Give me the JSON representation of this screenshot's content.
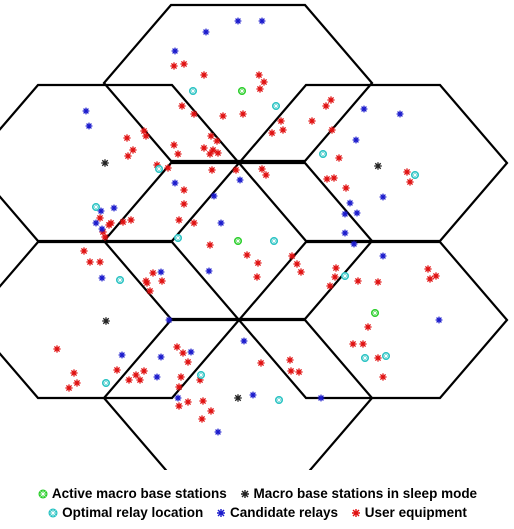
{
  "legend": {
    "active": {
      "label": "Active macro base stations",
      "color": "#22cc22"
    },
    "sleep": {
      "label": "Macro base stations in sleep mode",
      "color": "#222222"
    },
    "relay_opt": {
      "label": "Optimal relay location",
      "color": "#20c0c0"
    },
    "candidate": {
      "label": "Candidate relays",
      "color": "#1a1acc"
    },
    "user": {
      "label": "User equipment",
      "color": "#e01010"
    }
  },
  "cells": [
    {
      "id": "top",
      "bs": "active"
    },
    {
      "id": "upper-left",
      "bs": "sleep"
    },
    {
      "id": "upper-right",
      "bs": "sleep"
    },
    {
      "id": "center",
      "bs": "active"
    },
    {
      "id": "lower-left",
      "bs": "sleep"
    },
    {
      "id": "lower-right",
      "bs": "active"
    },
    {
      "id": "bottom",
      "bs": "sleep"
    }
  ]
}
